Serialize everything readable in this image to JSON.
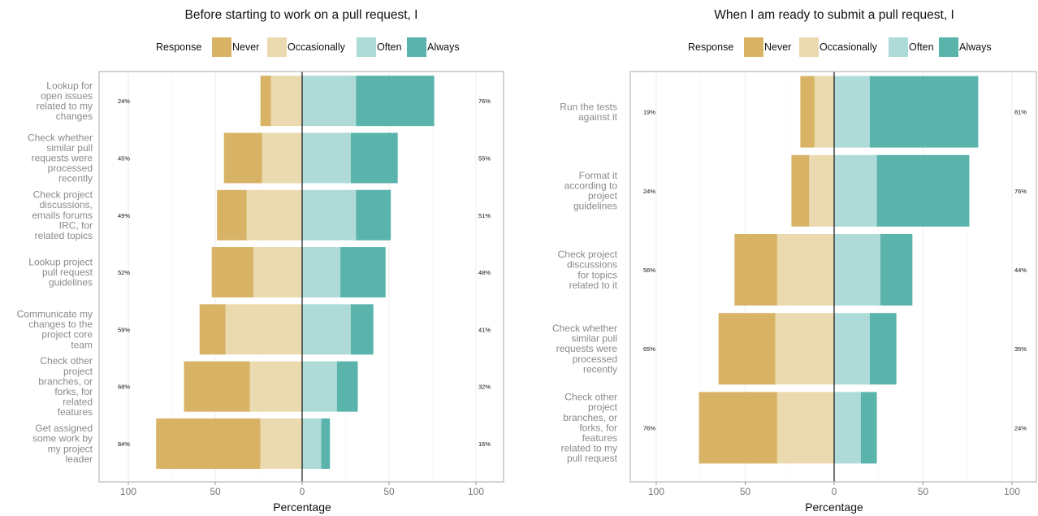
{
  "legend": {
    "title": "Response",
    "items": [
      {
        "label": "Never",
        "color": "#D8B365"
      },
      {
        "label": "Occasionally",
        "color": "#EBDAAF"
      },
      {
        "label": "Often",
        "color": "#AEDBD7"
      },
      {
        "label": "Always",
        "color": "#5AB4AC"
      }
    ]
  },
  "chart_data": [
    {
      "type": "bar",
      "subtype": "diverging-stacked-horizontal",
      "title": "Before starting to work on a pull request, I",
      "xlabel": "Percentage",
      "xlim": [
        -100,
        100
      ],
      "xticks": [
        -100,
        -50,
        0,
        50,
        100
      ],
      "xtick_labels": [
        "100",
        "50",
        "0",
        "50",
        "100"
      ],
      "grid": true,
      "legend_position": "top",
      "series_names": [
        "Never",
        "Occasionally",
        "Often",
        "Always"
      ],
      "categories": [
        {
          "label": "Lookup for open issues related to my changes",
          "lines": [
            "Lookup for",
            "open issues",
            "related to my",
            "changes"
          ],
          "values": [
            6,
            18,
            31,
            45
          ],
          "left_label": "24%",
          "right_label": "76%"
        },
        {
          "label": "Check whether similar pull requests were processed recently",
          "lines": [
            "Check whether",
            "similar pull",
            "requests were",
            "processed",
            "recently"
          ],
          "values": [
            22,
            23,
            28,
            27
          ],
          "left_label": "45%",
          "right_label": "55%"
        },
        {
          "label": "Check project discussions, emails forums IRC, for related topics",
          "lines": [
            "Check project",
            "discussions,",
            "emails forums",
            "IRC, for",
            "related topics"
          ],
          "values": [
            17,
            32,
            31,
            20
          ],
          "left_label": "49%",
          "right_label": "51%"
        },
        {
          "label": "Lookup project pull request guidelines",
          "lines": [
            "Lookup project",
            "pull request",
            "guidelines"
          ],
          "values": [
            24,
            28,
            22,
            26
          ],
          "left_label": "52%",
          "right_label": "48%"
        },
        {
          "label": "Communicate my changes to the project core team",
          "lines": [
            "Communicate my",
            "changes to the",
            "project core",
            "team"
          ],
          "values": [
            15,
            44,
            28,
            13
          ],
          "left_label": "59%",
          "right_label": "41%"
        },
        {
          "label": "Check other project branches, or forks, for related features",
          "lines": [
            "Check other",
            "project",
            "branches, or",
            "forks, for",
            "related",
            "features"
          ],
          "values": [
            38,
            30,
            20,
            12
          ],
          "left_label": "68%",
          "right_label": "32%"
        },
        {
          "label": "Get assigned some work by my project leader",
          "lines": [
            "Get assigned",
            "some work by",
            "my project",
            "leader"
          ],
          "values": [
            60,
            24,
            11,
            5
          ],
          "left_label": "84%",
          "right_label": "16%"
        }
      ]
    },
    {
      "type": "bar",
      "subtype": "diverging-stacked-horizontal",
      "title": "When I am ready to submit a pull request, I",
      "xlabel": "Percentage",
      "xlim": [
        -100,
        100
      ],
      "xticks": [
        -100,
        -50,
        0,
        50,
        100
      ],
      "xtick_labels": [
        "100",
        "50",
        "0",
        "50",
        "100"
      ],
      "grid": true,
      "legend_position": "top",
      "series_names": [
        "Never",
        "Occasionally",
        "Often",
        "Always"
      ],
      "categories": [
        {
          "label": "Run the tests against it",
          "lines": [
            "Run the tests",
            "against it"
          ],
          "values": [
            8,
            11,
            20,
            61
          ],
          "left_label": "19%",
          "right_label": "81%"
        },
        {
          "label": "Format it according to project guidelines",
          "lines": [
            "Format it",
            "according to",
            "project",
            "guidelines"
          ],
          "values": [
            10,
            14,
            24,
            52
          ],
          "left_label": "24%",
          "right_label": "76%"
        },
        {
          "label": "Check project discussions for topics related to it",
          "lines": [
            "Check project",
            "discussions",
            "for topics",
            "related to it"
          ],
          "values": [
            24,
            32,
            26,
            18
          ],
          "left_label": "56%",
          "right_label": "44%"
        },
        {
          "label": "Check whether similar pull requests were processed recently",
          "lines": [
            "Check whether",
            "similar pull",
            "requests were",
            "processed",
            "recently"
          ],
          "values": [
            32,
            33,
            20,
            15
          ],
          "left_label": "65%",
          "right_label": "35%"
        },
        {
          "label": "Check other project branches, or forks, for features related to my pull request",
          "lines": [
            "Check other",
            "project",
            "branches, or",
            "forks, for",
            "features",
            "related to my",
            "pull request"
          ],
          "values": [
            44,
            32,
            15,
            9
          ],
          "left_label": "76%",
          "right_label": "24%"
        }
      ]
    }
  ]
}
